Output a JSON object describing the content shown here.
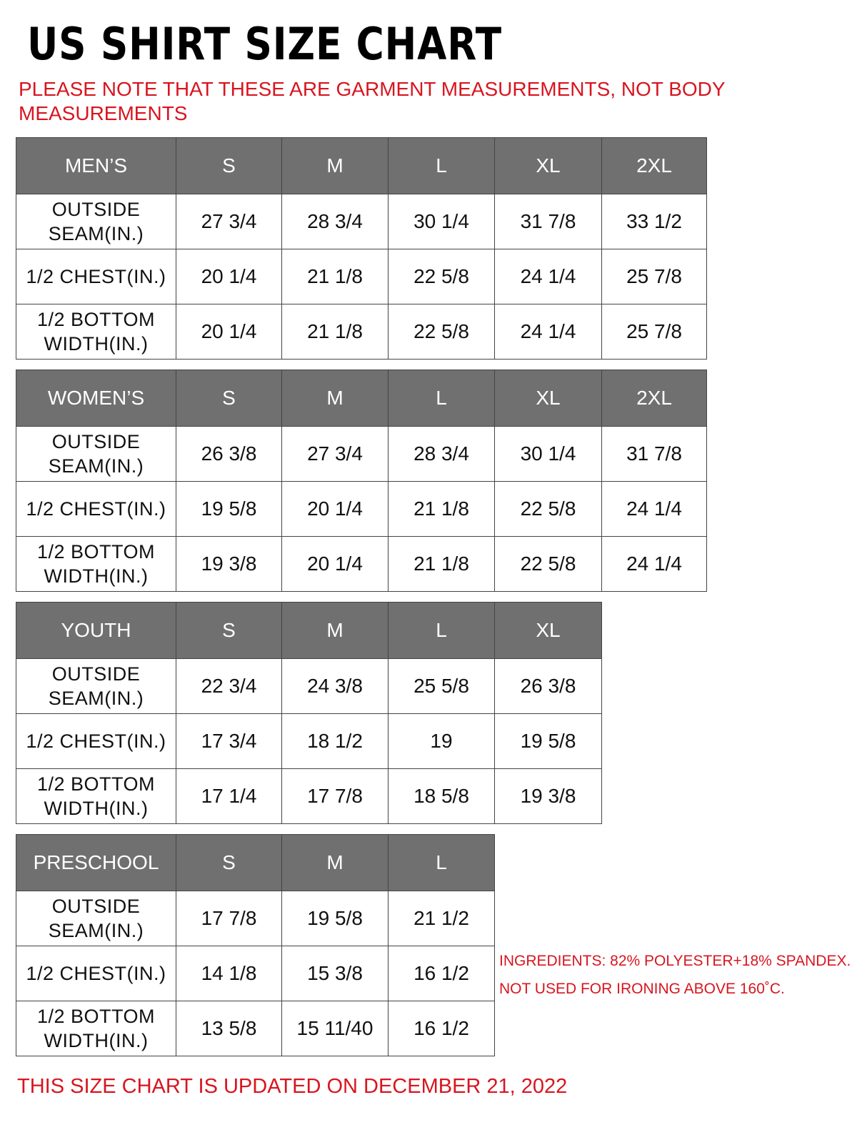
{
  "title": "US SHIRT SIZE CHART",
  "note": "PLEASE NOTE THAT THESE ARE GARMENT MEASUREMENTS, NOT BODY MEASUREMENTS",
  "colors": {
    "header_bg": "#707070",
    "accent_red": "#d8151f"
  },
  "tables": [
    {
      "category": "MEN’S",
      "sizes": [
        "S",
        "M",
        "L",
        "XL",
        "2XL"
      ],
      "rows": [
        {
          "label": "OUTSIDE SEAM(IN.)",
          "values": [
            "27 3/4",
            "28 3/4",
            "30 1/4",
            "31 7/8",
            "33 1/2"
          ]
        },
        {
          "label": "1/2 CHEST(IN.)",
          "values": [
            "20 1/4",
            "21 1/8",
            "22 5/8",
            "24 1/4",
            "25 7/8"
          ]
        },
        {
          "label": "1/2 BOTTOM WIDTH(IN.)",
          "values": [
            "20 1/4",
            "21 1/8",
            "22 5/8",
            "24 1/4",
            "25 7/8"
          ]
        }
      ]
    },
    {
      "category": "WOMEN’S",
      "sizes": [
        "S",
        "M",
        "L",
        "XL",
        "2XL"
      ],
      "rows": [
        {
          "label": "OUTSIDE SEAM(IN.)",
          "values": [
            "26 3/8",
            "27 3/4",
            "28 3/4",
            "30 1/4",
            "31 7/8"
          ]
        },
        {
          "label": "1/2 CHEST(IN.)",
          "values": [
            "19 5/8",
            "20 1/4",
            "21 1/8",
            "22 5/8",
            "24 1/4"
          ]
        },
        {
          "label": "1/2 BOTTOM WIDTH(IN.)",
          "values": [
            "19 3/8",
            "20 1/4",
            "21 1/8",
            "22 5/8",
            "24 1/4"
          ]
        }
      ]
    },
    {
      "category": "YOUTH",
      "sizes": [
        "S",
        "M",
        "L",
        "XL"
      ],
      "rows": [
        {
          "label": "OUTSIDE SEAM(IN.)",
          "values": [
            "22 3/4",
            "24 3/8",
            "25 5/8",
            "26 3/8"
          ]
        },
        {
          "label": "1/2 CHEST(IN.)",
          "values": [
            "17 3/4",
            "18 1/2",
            "19",
            "19 5/8"
          ]
        },
        {
          "label": "1/2 BOTTOM WIDTH(IN.)",
          "values": [
            "17 1/4",
            "17 7/8",
            "18 5/8",
            "19 3/8"
          ]
        }
      ]
    },
    {
      "category": "PRESCHOOL",
      "sizes": [
        "S",
        "M",
        "L"
      ],
      "rows": [
        {
          "label": "OUTSIDE SEAM(IN.)",
          "values": [
            "17 7/8",
            "19 5/8",
            "21 1/2"
          ]
        },
        {
          "label": "1/2 CHEST(IN.)",
          "values": [
            "14 1/8",
            "15 3/8",
            "16 1/2"
          ]
        },
        {
          "label": "1/2 BOTTOM WIDTH(IN.)",
          "values": [
            "13 5/8",
            "15 11/40",
            "16 1/2"
          ]
        }
      ]
    }
  ],
  "ingredients": "INGREDIENTS: 82% POLYESTER+18% SPANDEX.",
  "ironing": "NOT USED FOR IRONING ABOVE 160˚C.",
  "footer": "THIS SIZE CHART IS UPDATED ON DECEMBER 21, 2022"
}
